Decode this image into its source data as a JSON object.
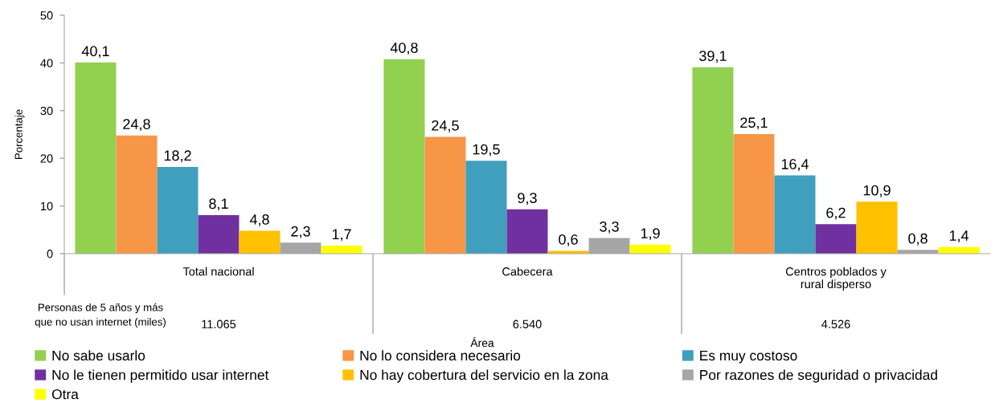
{
  "chart_data": {
    "type": "bar",
    "ylabel": "Porcentaje",
    "xlabel": "Área",
    "categories": [
      "Total nacional",
      "Cabecera",
      "Centros poblados y\nrural disperso"
    ],
    "ylim": [
      0,
      50
    ],
    "yticks": [
      0,
      10,
      20,
      30,
      40,
      50
    ],
    "legend": "bottom",
    "series": [
      {
        "name": "No sabe usarlo",
        "color": "#92d050",
        "values": [
          40.1,
          40.8,
          39.1
        ],
        "value_labels": [
          "40,1",
          "40,8",
          "39,1"
        ]
      },
      {
        "name": "No lo considera necesario",
        "color": "#f79646",
        "values": [
          24.8,
          24.5,
          25.1
        ],
        "value_labels": [
          "24,8",
          "24,5",
          "25,1"
        ]
      },
      {
        "name": "Es muy costoso",
        "color": "#3f9fbd",
        "values": [
          18.2,
          19.5,
          16.4
        ],
        "value_labels": [
          "18,2",
          "19,5",
          "16,4"
        ]
      },
      {
        "name": "No le tienen permitido usar internet",
        "color": "#7030a0",
        "values": [
          8.1,
          9.3,
          6.2
        ],
        "value_labels": [
          "8,1",
          "9,3",
          "6,2"
        ]
      },
      {
        "name": "No hay cobertura del servicio en la zona",
        "color": "#ffc000",
        "values": [
          4.8,
          0.6,
          10.9
        ],
        "value_labels": [
          "4,8",
          "0,6",
          "10,9"
        ]
      },
      {
        "name": "Por razones de seguridad o privacidad",
        "color": "#a6a6a6",
        "values": [
          2.3,
          3.3,
          0.8
        ],
        "value_labels": [
          "2,3",
          "3,3",
          "0,8"
        ]
      },
      {
        "name": "Otra",
        "color": "#ffff00",
        "values": [
          1.7,
          1.9,
          1.4
        ],
        "value_labels": [
          "1,7",
          "1,9",
          "1,4"
        ]
      }
    ],
    "annotations": [
      "Personas de 5 años y más\nque no usan internet (miles)",
      "11.065",
      "6.540",
      "4.526"
    ]
  }
}
